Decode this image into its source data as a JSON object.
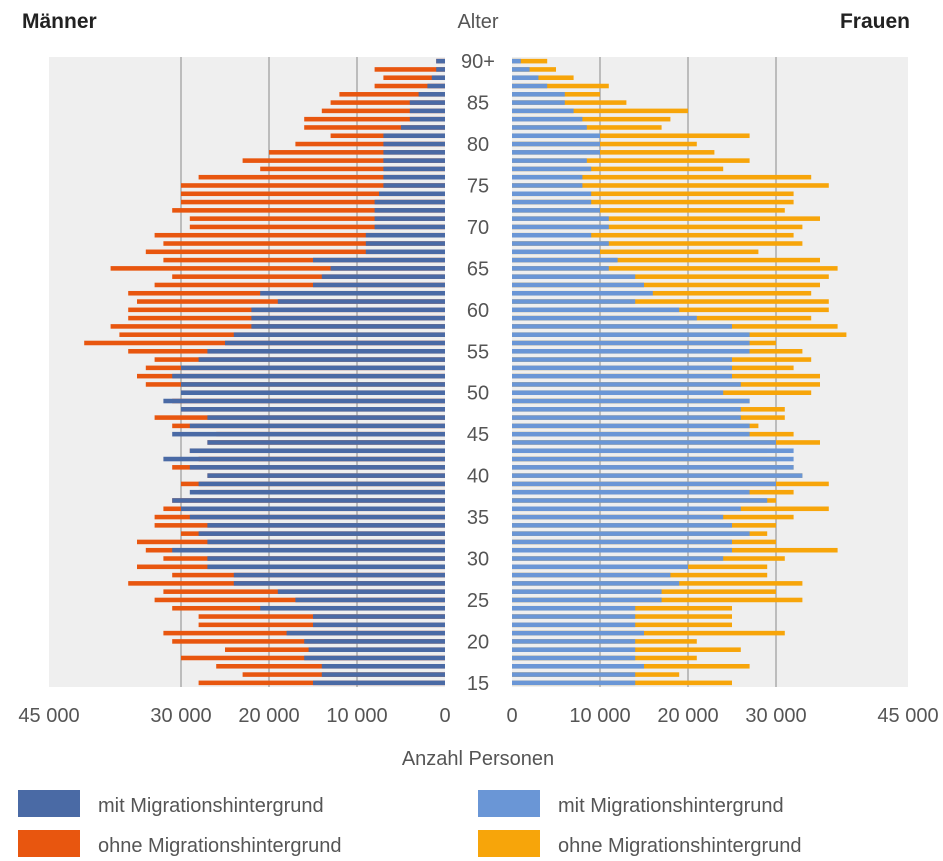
{
  "chart_data": {
    "type": "bar",
    "orientation": "horizontal",
    "subtype": "population pyramid",
    "left_title": "Männer",
    "right_title": "Frauen",
    "center_label": "Alter",
    "xlabel": "Anzahl Personen",
    "xlim": [
      0,
      45000
    ],
    "grid": true,
    "age_tick_labels": [
      "15",
      "20",
      "25",
      "30",
      "35",
      "40",
      "45",
      "50",
      "55",
      "60",
      "65",
      "70",
      "75",
      "80",
      "85",
      "90+"
    ],
    "men_tick_labels": [
      "45 000",
      "30 000",
      "20 000",
      "10 000",
      "0"
    ],
    "women_tick_labels": [
      "0",
      "10 000",
      "20 000",
      "30 000",
      "45 000"
    ],
    "legend": [
      {
        "label": "mit Migrationshintergrund",
        "color": "#4a6aa5",
        "side": "men"
      },
      {
        "label": "ohne Migrationshintergrund",
        "color": "#e8560f",
        "side": "men"
      },
      {
        "label": "mit Migrationshintergrund",
        "color": "#6a96d6",
        "side": "women"
      },
      {
        "label": "ohne Migrationshintergrund",
        "color": "#f7a50a",
        "side": "women"
      }
    ],
    "ages": [
      15,
      16,
      17,
      18,
      19,
      20,
      21,
      22,
      23,
      24,
      25,
      26,
      27,
      28,
      29,
      30,
      31,
      32,
      33,
      34,
      35,
      36,
      37,
      38,
      39,
      40,
      41,
      42,
      43,
      44,
      45,
      46,
      47,
      48,
      49,
      50,
      51,
      52,
      53,
      54,
      55,
      56,
      57,
      58,
      59,
      60,
      61,
      62,
      63,
      64,
      65,
      66,
      67,
      68,
      69,
      70,
      71,
      72,
      73,
      74,
      75,
      76,
      77,
      78,
      79,
      80,
      81,
      82,
      83,
      84,
      85,
      86,
      87,
      88,
      89,
      90
    ],
    "series": [
      {
        "name": "Männer mit Migrationshintergrund",
        "color": "#4a6aa5",
        "values": [
          15000,
          14000,
          14000,
          16000,
          15500,
          16000,
          18000,
          15000,
          15000,
          21000,
          17000,
          19000,
          24000,
          24000,
          27000,
          27000,
          31000,
          27000,
          28000,
          27000,
          29000,
          30000,
          31000,
          29000,
          28000,
          27000,
          29000,
          32000,
          29000,
          27000,
          31000,
          29000,
          27000,
          30000,
          32000,
          30000,
          30000,
          31000,
          30000,
          28000,
          27000,
          25000,
          24000,
          22000,
          22000,
          22000,
          19000,
          21000,
          15000,
          14000,
          13000,
          15000,
          9000,
          9000,
          9000,
          8000,
          8000,
          8000,
          8000,
          7500,
          7000,
          7000,
          7000,
          7000,
          7000,
          7000,
          7000,
          5000,
          4000,
          4000,
          4000,
          3000,
          2000,
          1500,
          1000,
          1000
        ]
      },
      {
        "name": "Männer ohne Migrationshintergrund",
        "color": "#e8560f",
        "values": [
          28000,
          23000,
          26000,
          30000,
          25000,
          31000,
          32000,
          28000,
          28000,
          31000,
          33000,
          32000,
          36000,
          31000,
          35000,
          32000,
          34000,
          35000,
          30000,
          33000,
          33000,
          32000,
          31000,
          28000,
          30000,
          27000,
          31000,
          28000,
          29000,
          27000,
          26000,
          31000,
          33000,
          30000,
          31000,
          30000,
          34000,
          35000,
          34000,
          33000,
          36000,
          41000,
          37000,
          38000,
          36000,
          36000,
          35000,
          36000,
          33000,
          31000,
          38000,
          32000,
          34000,
          32000,
          33000,
          29000,
          29000,
          31000,
          30000,
          30000,
          30000,
          28000,
          21000,
          23000,
          20000,
          17000,
          13000,
          16000,
          16000,
          14000,
          13000,
          12000,
          8000,
          7000,
          8000,
          1000
        ]
      },
      {
        "name": "Frauen mit Migrationshintergrund",
        "color": "#6a96d6",
        "values": [
          14000,
          14000,
          15000,
          14000,
          14000,
          14000,
          15000,
          14000,
          14000,
          14000,
          17000,
          17000,
          19000,
          18000,
          20000,
          24000,
          25000,
          25000,
          27000,
          25000,
          24000,
          26000,
          29000,
          27000,
          30000,
          33000,
          32000,
          32000,
          32000,
          30000,
          27000,
          27000,
          26000,
          26000,
          27000,
          24000,
          26000,
          25000,
          25000,
          25000,
          27000,
          27000,
          27000,
          25000,
          21000,
          19000,
          14000,
          16000,
          15000,
          14000,
          11000,
          12000,
          10000,
          11000,
          9000,
          11000,
          11000,
          10000,
          9000,
          9000,
          8000,
          8000,
          9000,
          8500,
          10000,
          10000,
          10000,
          8500,
          8000,
          7000,
          6000,
          6000,
          4000,
          3000,
          2000,
          1000
        ]
      },
      {
        "name": "Frauen ohne Migrationshintergrund",
        "color": "#f7a50a",
        "values": [
          25000,
          19000,
          27000,
          21000,
          26000,
          21000,
          31000,
          25000,
          25000,
          25000,
          33000,
          30000,
          33000,
          29000,
          29000,
          31000,
          37000,
          30000,
          29000,
          30000,
          32000,
          36000,
          30000,
          32000,
          36000,
          33000,
          32000,
          30000,
          29000,
          35000,
          32000,
          28000,
          31000,
          31000,
          27000,
          34000,
          35000,
          35000,
          32000,
          34000,
          33000,
          30000,
          38000,
          37000,
          34000,
          36000,
          36000,
          34000,
          35000,
          36000,
          37000,
          35000,
          28000,
          33000,
          32000,
          33000,
          35000,
          31000,
          32000,
          32000,
          36000,
          34000,
          24000,
          27000,
          23000,
          21000,
          27000,
          17000,
          18000,
          20000,
          13000,
          10000,
          11000,
          7000,
          5000,
          4000
        ]
      }
    ]
  }
}
